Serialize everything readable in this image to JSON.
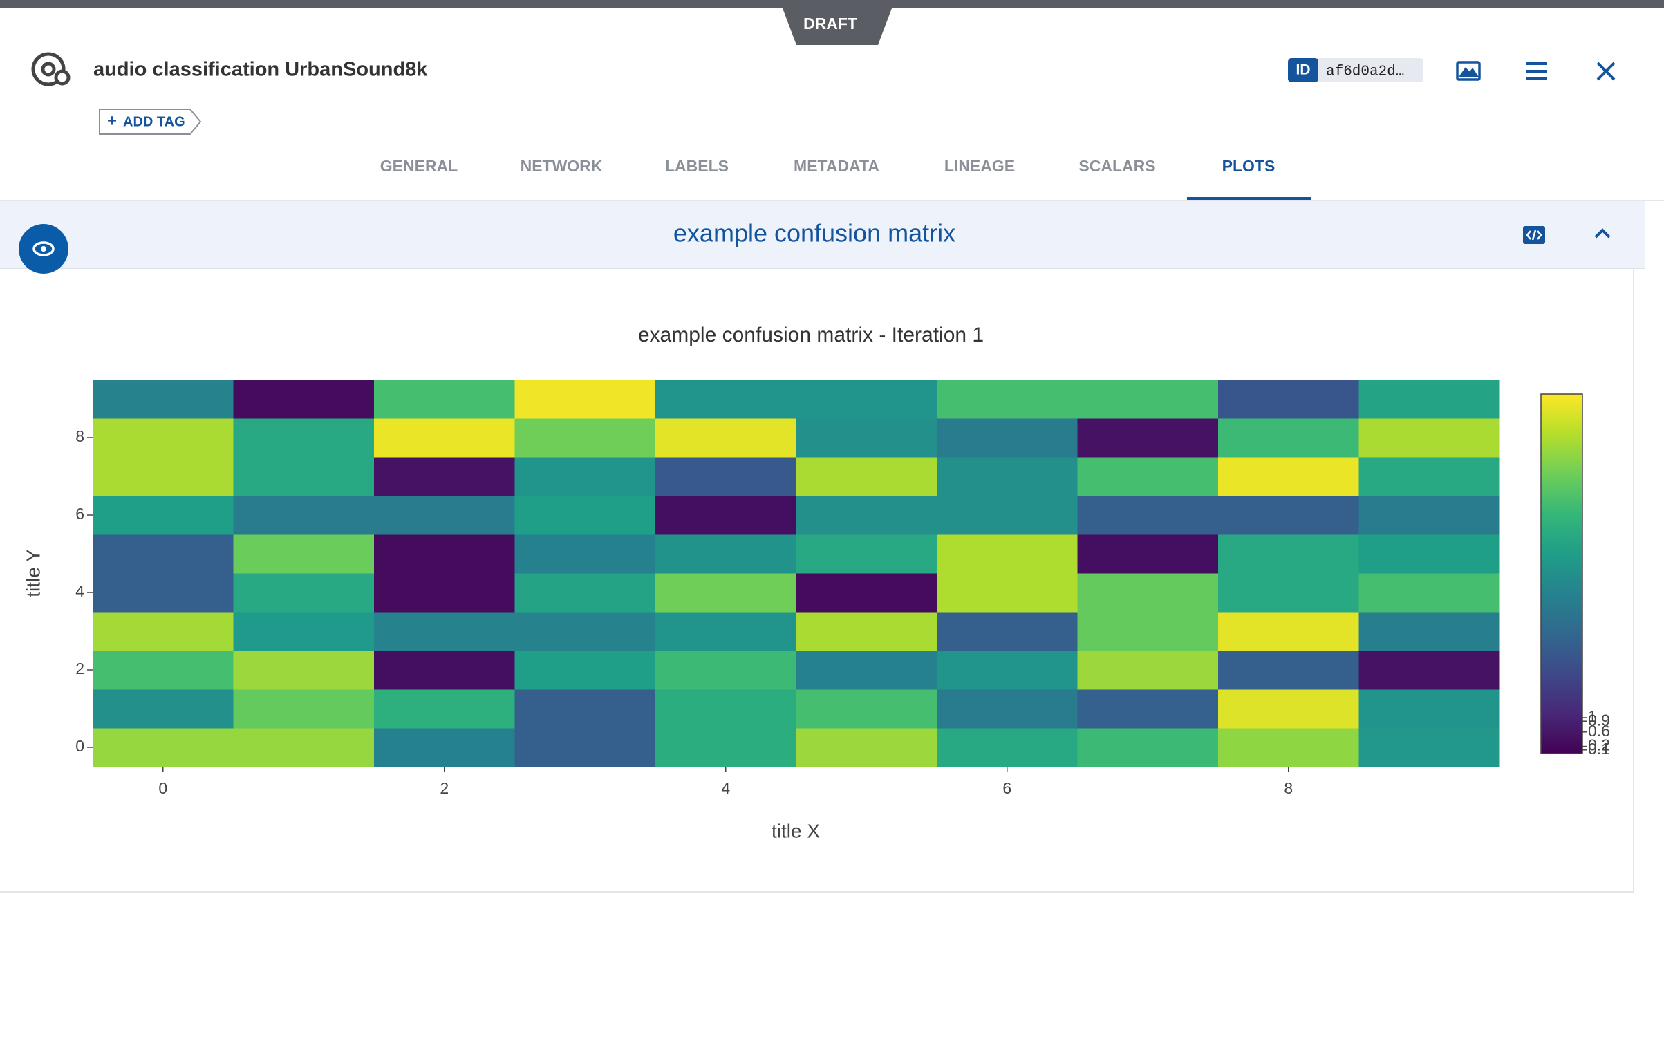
{
  "header": {
    "draft": "DRAFT",
    "title": "audio classification UrbanSound8k",
    "add_tag": "ADD TAG",
    "id_badge": "ID",
    "id": "af6d0a2d…"
  },
  "tabs": [
    "GENERAL",
    "NETWORK",
    "LABELS",
    "METADATA",
    "LINEAGE",
    "SCALARS",
    "PLOTS"
  ],
  "section_title": "example confusion matrix",
  "chart_data": {
    "type": "heatmap",
    "title": "example confusion matrix - Iteration 1",
    "x_label": "title X",
    "y_label": "title Y",
    "x": [
      0,
      1,
      2,
      3,
      4,
      5,
      6,
      7,
      8,
      9
    ],
    "y": [
      0,
      1,
      2,
      3,
      4,
      5,
      6,
      7,
      8,
      9
    ],
    "z": [
      [
        8.4,
        8.4,
        4.4,
        3.0,
        6.2,
        8.5,
        6.0,
        6.8,
        8.3,
        5.3
      ],
      [
        5.0,
        7.6,
        6.3,
        3.0,
        6.2,
        7.0,
        4.2,
        3.1,
        9.5,
        5.2
      ],
      [
        7.0,
        8.5,
        0.4,
        5.6,
        6.8,
        4.4,
        5.2,
        8.5,
        3.0,
        0.5
      ],
      [
        8.6,
        5.4,
        4.5,
        4.5,
        5.2,
        8.7,
        3.0,
        7.6,
        9.6,
        4.3
      ],
      [
        3.0,
        6.0,
        0.3,
        5.8,
        7.8,
        0.3,
        8.8,
        7.6,
        6.0,
        7.0
      ],
      [
        3.0,
        7.7,
        0.3,
        4.4,
        5.1,
        6.0,
        8.8,
        0.4,
        6.0,
        5.6
      ],
      [
        5.6,
        4.2,
        4.2,
        5.6,
        0.4,
        5.0,
        5.0,
        3.0,
        3.0,
        4.2
      ],
      [
        8.7,
        6.0,
        0.5,
        5.2,
        2.8,
        8.7,
        5.0,
        7.0,
        9.7,
        6.0
      ],
      [
        8.7,
        6.0,
        9.7,
        7.8,
        9.6,
        5.0,
        4.2,
        0.5,
        6.8,
        8.7
      ],
      [
        4.5,
        0.3,
        7.0,
        9.8,
        5.2,
        5.2,
        7.0,
        7.0,
        2.7,
        5.8
      ]
    ],
    "xlim": [
      -0.5,
      9.5
    ],
    "ylim": [
      -0.5,
      9.5
    ],
    "xticks": [
      0,
      2,
      4,
      6,
      8
    ],
    "yticks": [
      0,
      2,
      4,
      6,
      8
    ],
    "zlim": [
      0,
      10
    ],
    "zticks": [
      1,
      0.9,
      0.6,
      0.2,
      0.1
    ],
    "colorscale": [
      "#440154",
      "#482878",
      "#3e4989",
      "#31688e",
      "#26828e",
      "#1f9e89",
      "#35b779",
      "#6ece58",
      "#b5de2b",
      "#fde725"
    ]
  }
}
